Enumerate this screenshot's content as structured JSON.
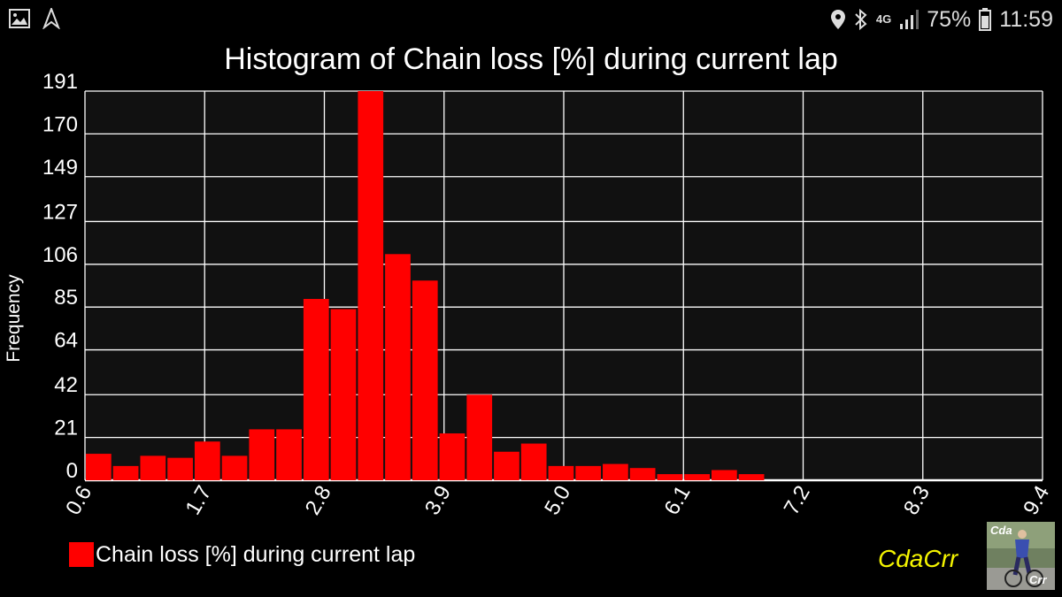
{
  "status_bar": {
    "icons_left": [
      "image-icon",
      "navigation-icon"
    ],
    "icons_right": [
      "location-icon",
      "bluetooth-icon",
      "network-4g-icon",
      "signal-icon"
    ],
    "network": "4G",
    "battery": "75%",
    "time": "11:59"
  },
  "brand": {
    "name": "CdaCrr",
    "logo_text_top": "Cda",
    "logo_text_bottom": "Crr"
  },
  "colors": {
    "bar": "#ff0000",
    "grid": "#ffffff",
    "plot_bg": "#111111",
    "brand": "#f5f500"
  },
  "chart_data": {
    "type": "bar",
    "title": "Histogram of Chain loss [%] during current lap",
    "xlabel": "",
    "ylabel": "Frequency",
    "xlim": [
      0.6,
      9.4
    ],
    "ylim": [
      0,
      191
    ],
    "x_ticks": [
      "0.6",
      "1.7",
      "2.8",
      "3.9",
      "5.0",
      "6.1",
      "7.2",
      "8.3",
      "9.4"
    ],
    "y_ticks": [
      "0",
      "21",
      "42",
      "64",
      "85",
      "106",
      "127",
      "149",
      "170",
      "191"
    ],
    "grid": true,
    "legend_position": "bottom-left",
    "series": [
      {
        "name": "Chain loss [%] during current lap",
        "bin_width": 0.25,
        "bin_starts": [
          0.6,
          0.85,
          1.1,
          1.35,
          1.6,
          1.85,
          2.1,
          2.35,
          2.6,
          2.85,
          3.1,
          3.35,
          3.6,
          3.85,
          4.1,
          4.35,
          4.6,
          4.85,
          5.1,
          5.35,
          5.6,
          5.85,
          6.1,
          6.35,
          6.6
        ],
        "values": [
          13,
          7,
          12,
          11,
          19,
          12,
          25,
          25,
          89,
          84,
          191,
          111,
          98,
          23,
          42,
          14,
          18,
          7,
          7,
          8,
          6,
          3,
          3,
          5,
          3
        ]
      }
    ]
  }
}
